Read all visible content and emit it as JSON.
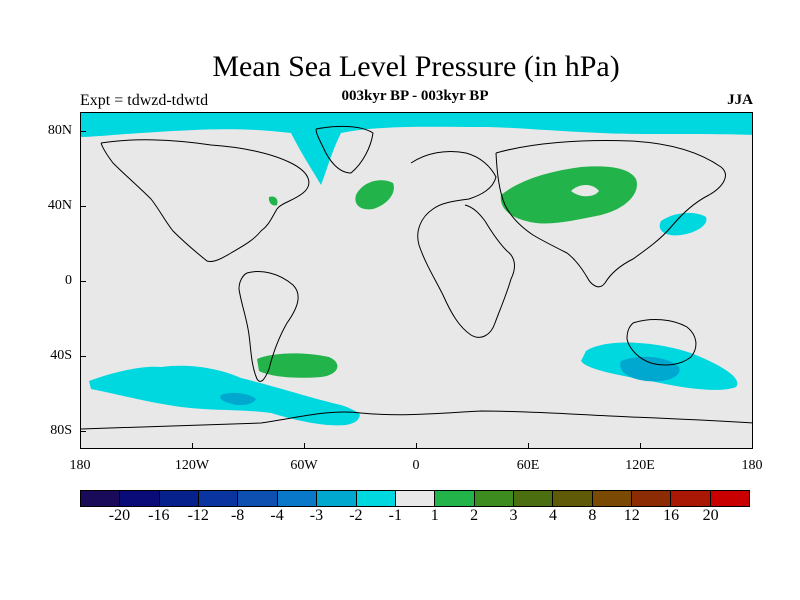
{
  "figure": {
    "title": "Mean Sea Level Pressure (in hPa)",
    "subtitle": "003kyr BP - 003kyr BP",
    "experiment": "Expt = tdwzd-tdwtd",
    "season": "JJA"
  },
  "axes": {
    "y_labels": [
      "80N",
      "40N",
      "0",
      "40S",
      "80S"
    ],
    "x_labels": [
      "180",
      "120W",
      "60W",
      "0",
      "60E",
      "120E",
      "180"
    ]
  },
  "colors": {
    "ocean_land_background": "#e8e8e8",
    "cyan_negative": "#00d8e0",
    "blue_negative": "#00a8d0",
    "green_positive": "#22b44a",
    "coastline": "#000000"
  },
  "colorbar": {
    "labels": [
      "-20",
      "-16",
      "-12",
      "-8",
      "-4",
      "-3",
      "-2",
      "-1",
      "1",
      "2",
      "3",
      "4",
      "8",
      "12",
      "16",
      "20"
    ],
    "colors": [
      "#1a0a5a",
      "#0a0a78",
      "#06208c",
      "#0a35a0",
      "#0e50b0",
      "#0a78c8",
      "#00a8d0",
      "#00d8e0",
      "#e8e8e8",
      "#22b44a",
      "#3c8c20",
      "#4a6e10",
      "#5e5a08",
      "#7a4a04",
      "#8c2c04",
      "#a81804",
      "#c80000"
    ]
  }
}
